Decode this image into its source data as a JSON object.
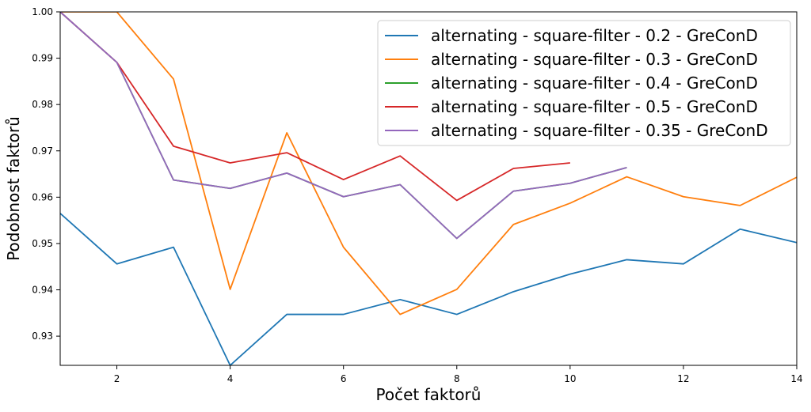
{
  "chart_data": {
    "type": "line",
    "title": "",
    "xlabel": "Počet faktorů",
    "ylabel": "Podobnost faktorů",
    "xlim": [
      1,
      14
    ],
    "ylim": [
      0.9237,
      1.0
    ],
    "xticks": [
      2,
      4,
      6,
      8,
      10,
      12,
      14
    ],
    "xtick_labels": [
      "2",
      "4",
      "6",
      "8",
      "10",
      "12",
      "14"
    ],
    "yticks": [
      0.93,
      0.94,
      0.95,
      0.96,
      0.97,
      0.98,
      0.99,
      1.0
    ],
    "ytick_labels": [
      "0.93",
      "0.94",
      "0.95",
      "0.96",
      "0.97",
      "0.98",
      "0.99",
      "1.00"
    ],
    "grid": false,
    "legend_position": "top-right",
    "series": [
      {
        "name": "alternating - square-filter - 0.2 - GreConD",
        "color": "#1f77b4",
        "x": [
          1,
          2,
          3,
          4,
          5,
          6,
          7,
          8,
          9,
          10,
          11,
          12,
          13,
          14
        ],
        "values": [
          0.9565,
          0.9456,
          0.9492,
          0.9237,
          0.9347,
          0.9347,
          0.9379,
          0.9347,
          0.9396,
          0.9434,
          0.9465,
          0.9456,
          0.9531,
          0.9502
        ]
      },
      {
        "name": "alternating - square-filter - 0.3 - GreConD",
        "color": "#ff7f0e",
        "x": [
          1,
          2,
          3,
          4,
          5,
          6,
          7,
          8,
          9,
          10,
          11,
          12,
          13,
          14
        ],
        "values": [
          1.0,
          1.0,
          0.9855,
          0.9401,
          0.9739,
          0.9492,
          0.9347,
          0.9401,
          0.9541,
          0.9587,
          0.9644,
          0.9601,
          0.9582,
          0.9643
        ]
      },
      {
        "name": "alternating - square-filter - 0.4 - GreConD",
        "color": "#2ca02c",
        "x": [
          1,
          2,
          3,
          4,
          5,
          6,
          7,
          8,
          9,
          10,
          11
        ],
        "values": [
          1.0,
          0.9891,
          0.9637,
          0.9619,
          0.9652,
          0.9601,
          0.9627,
          0.9511,
          0.9613,
          0.963,
          0.9664
        ]
      },
      {
        "name": "alternating - square-filter - 0.5 - GreConD",
        "color": "#d62728",
        "x": [
          1,
          2,
          3,
          4,
          5,
          6,
          7,
          8,
          9,
          10
        ],
        "values": [
          1.0,
          0.9891,
          0.971,
          0.9674,
          0.9696,
          0.9638,
          0.9689,
          0.9593,
          0.9662,
          0.9674
        ]
      },
      {
        "name": "alternating - square-filter - 0.35 - GreConD",
        "color": "#9467bd",
        "x": [
          1,
          2,
          3,
          4,
          5,
          6,
          7,
          8,
          9,
          10,
          11
        ],
        "values": [
          1.0,
          0.9891,
          0.9637,
          0.9619,
          0.9652,
          0.9601,
          0.9627,
          0.9511,
          0.9613,
          0.963,
          0.9664
        ]
      }
    ]
  }
}
